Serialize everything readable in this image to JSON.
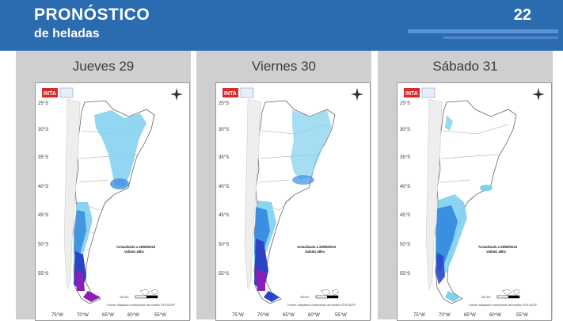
{
  "header": {
    "title": "PRONÓSTICO",
    "subtitle": "de heladas",
    "page_number": "22"
  },
  "colors": {
    "header_bg": "#2b6cb0",
    "panel_bg": "#cfcfcf",
    "frost_light": "#7fd0ee",
    "frost_medium": "#3b8fe0",
    "frost_strong": "#2b43c6",
    "frost_extreme": "#8a1fb8"
  },
  "axis": {
    "lat_labels": [
      "25°S",
      "30°S",
      "35°S",
      "40°S",
      "45°S",
      "50°S",
      "55°S"
    ],
    "lon_labels": [
      "75°W",
      "70°W",
      "65°W",
      "60°W",
      "55°W"
    ]
  },
  "map_common": {
    "logo": "INTA",
    "scale": "400 km",
    "source": "Fuente: Adaptado e interpolado del modelo GFS-NCEP"
  },
  "maps": [
    {
      "day": "Jueves 29",
      "updated": "Actualizado a 28/08/2023",
      "validity": "Validez 48hs"
    },
    {
      "day": "Viernes 30",
      "updated": "Actualizado a 28/08/2023",
      "validity": "Validez 48hs"
    },
    {
      "day": "Sábado 31",
      "updated": "Actualizado a 28/08/2023",
      "validity": "Validez 48hs"
    }
  ]
}
